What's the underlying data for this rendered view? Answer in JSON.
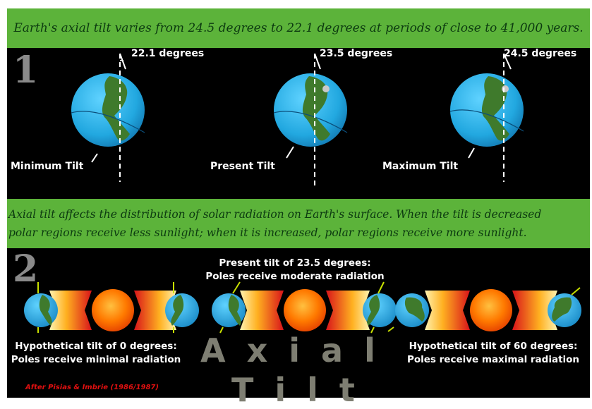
{
  "header": {
    "text": "Earth's axial tilt varies from 24.5 degrees to 22.1 degrees at periods of  close to 41,000 years."
  },
  "section1": {
    "number": "1",
    "globes": [
      {
        "degrees": "22.1 degrees",
        "label": "Minimum Tilt"
      },
      {
        "degrees": "23.5 degrees",
        "label": "Present Tilt"
      },
      {
        "degrees": "24.5 degrees",
        "label": "Maximum Tilt"
      }
    ]
  },
  "middle": {
    "line1": "Axial tilt affects the distribution of solar radiation on Earth's surface.  When the tilt is decreased",
    "line2": "polar regions receive less sunlight; when it is increased, polar regions receive more sunlight."
  },
  "section2": {
    "number": "2",
    "present_line1": "Present tilt of 23.5 degrees:",
    "present_line2": "Poles receive moderate radiation",
    "left_line1": "Hypothetical tilt of 0  degrees:",
    "left_line2": "Poles receive minimal radiation",
    "right_line1": "Hypothetical tilt of 60 degrees:",
    "right_line2": "Poles receive maximal radiation",
    "title_word1": "Axial",
    "title_word2": "Tilt",
    "credit": "After Pisias & Imbrie (1986/1987)"
  },
  "colors": {
    "banner_green": "#5cb33a",
    "ocean_blue": "#2fb4e6",
    "land_green": "#3f7a2c",
    "sun_orange": "#ff7a00",
    "ray_red": "#d8141a"
  }
}
